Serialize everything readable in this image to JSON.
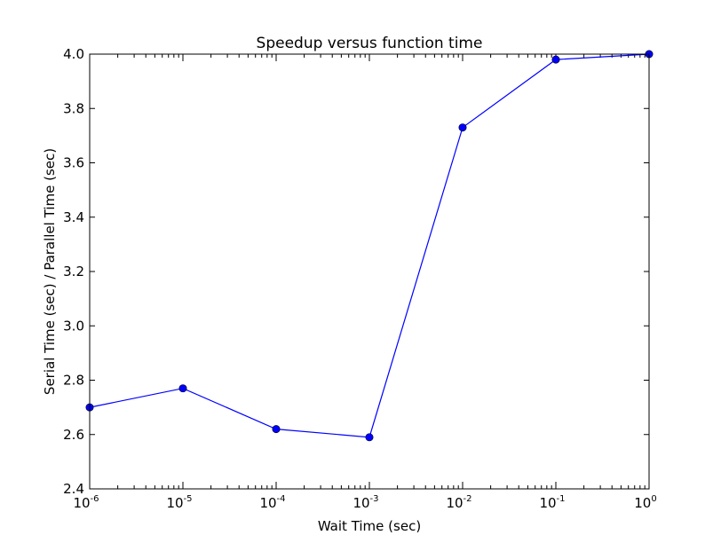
{
  "chart_data": {
    "type": "line",
    "title": "Speedup versus function time",
    "xlabel": "Wait Time (sec)",
    "ylabel": "Serial Time (sec) / Parallel Time (sec)",
    "xscale": "log",
    "xlim": [
      1e-06,
      1
    ],
    "ylim": [
      2.4,
      4.0
    ],
    "grid": false,
    "legend": "none",
    "x": [
      1e-06,
      1e-05,
      0.0001,
      0.001,
      0.01,
      0.1,
      1
    ],
    "series": [
      {
        "values": [
          2.7,
          2.77,
          2.62,
          2.59,
          3.73,
          3.98,
          4.0
        ],
        "color": "#0000ff",
        "marker": "circle"
      }
    ],
    "x_ticks": [
      {
        "base": "10",
        "exp": "-6"
      },
      {
        "base": "10",
        "exp": "-5"
      },
      {
        "base": "10",
        "exp": "-4"
      },
      {
        "base": "10",
        "exp": "-3"
      },
      {
        "base": "10",
        "exp": "-2"
      },
      {
        "base": "10",
        "exp": "-1"
      },
      {
        "base": "10",
        "exp": "0"
      }
    ],
    "y_ticks": [
      "2.4",
      "2.6",
      "2.8",
      "3.0",
      "3.2",
      "3.4",
      "3.6",
      "3.8",
      "4.0"
    ]
  }
}
